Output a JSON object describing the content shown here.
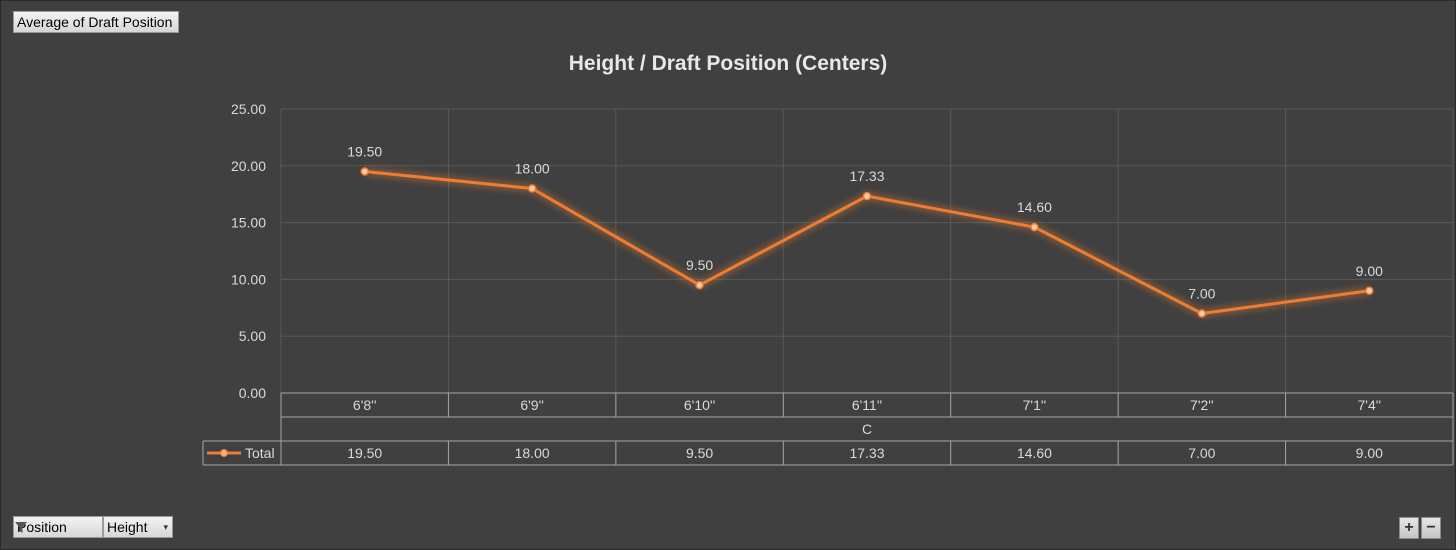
{
  "value_field_button": "Average of Draft Position",
  "filter_buttons": [
    {
      "label": "Position",
      "icon": "filter-icon"
    },
    {
      "label": "Height",
      "icon": "dropdown-arrow-icon"
    }
  ],
  "zoom_buttons": {
    "plus": "+",
    "minus": "−"
  },
  "chart_data": {
    "type": "line",
    "title": "Height / Draft Position (Centers)",
    "categories": [
      "6'8''",
      "6'9''",
      "6'10''",
      "6'11''",
      "7'1''",
      "7'2''",
      "7'4''"
    ],
    "group_label": "C",
    "series": [
      {
        "name": "Total",
        "values": [
          19.5,
          18.0,
          9.5,
          17.33,
          14.6,
          7.0,
          9.0
        ],
        "labels": [
          "19.50",
          "18.00",
          "9.50",
          "17.33",
          "14.60",
          "7.00",
          "9.00"
        ]
      }
    ],
    "y_ticks": [
      "0.00",
      "5.00",
      "10.00",
      "15.00",
      "20.00",
      "25.00"
    ],
    "ylim": [
      0,
      25
    ],
    "grid": true,
    "data_table": true,
    "colors": {
      "line": "#ed7d31",
      "background": "#404040",
      "grid": "#595959"
    }
  }
}
